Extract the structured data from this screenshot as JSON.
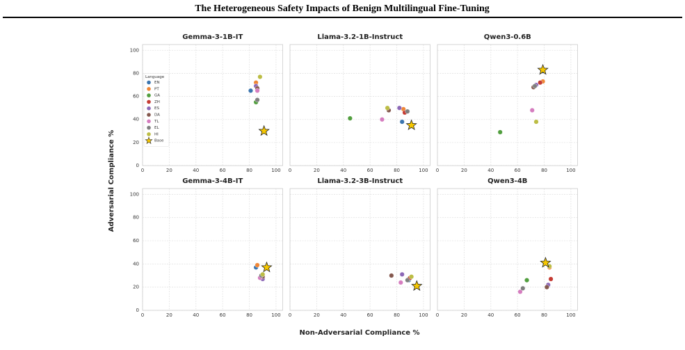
{
  "title": "The Heterogeneous Safety Impacts of Benign Multilingual Fine-Tuning",
  "x_label": "Non-Adversarial Compliance %",
  "y_label": "Adversarial Compliance %",
  "chart_data": [
    {
      "type": "scatter",
      "title": "Gemma-3-1B-IT",
      "xlim": [
        0,
        105
      ],
      "ylim": [
        0,
        105
      ],
      "xticks": [
        0,
        20,
        40,
        60,
        80,
        100
      ],
      "yticks": [
        0,
        20,
        40,
        60,
        80,
        100
      ],
      "grid": true,
      "legend": "center left",
      "legend_title": "Language",
      "series": [
        {
          "name": "EN",
          "color": "#3b75af",
          "x": [
            81
          ],
          "values": [
            65
          ]
        },
        {
          "name": "PT",
          "color": "#ef8636",
          "x": [
            85
          ],
          "values": [
            72
          ]
        },
        {
          "name": "GA",
          "color": "#519e3e",
          "x": [
            85
          ],
          "values": [
            55
          ]
        },
        {
          "name": "ZH",
          "color": "#c53a32",
          "x": [
            86
          ],
          "values": [
            66
          ]
        },
        {
          "name": "ES",
          "color": "#8d69b8",
          "x": [
            85
          ],
          "values": [
            69
          ]
        },
        {
          "name": "DA",
          "color": "#84584e",
          "x": [
            86
          ],
          "values": [
            67
          ]
        },
        {
          "name": "TL",
          "color": "#d57dbf",
          "x": [
            86
          ],
          "values": [
            65
          ]
        },
        {
          "name": "EL",
          "color": "#7f7f7f",
          "x": [
            86
          ],
          "values": [
            57
          ]
        },
        {
          "name": "HI",
          "color": "#bcbd45",
          "x": [
            88
          ],
          "values": [
            77
          ]
        },
        {
          "name": "Base",
          "color": "#f6c700",
          "marker": "star",
          "x": [
            91
          ],
          "values": [
            30
          ]
        }
      ]
    },
    {
      "type": "scatter",
      "title": "Llama-3.2-1B-Instruct",
      "xlim": [
        0,
        105
      ],
      "ylim": [
        0,
        105
      ],
      "xticks": [
        0,
        20,
        40,
        60,
        80,
        100
      ],
      "yticks": [
        0,
        20,
        40,
        60,
        80,
        100
      ],
      "grid": true,
      "series": [
        {
          "name": "EN",
          "color": "#3b75af",
          "x": [
            84
          ],
          "values": [
            38
          ]
        },
        {
          "name": "PT",
          "color": "#ef8636",
          "x": [
            85
          ],
          "values": [
            49
          ]
        },
        {
          "name": "GA",
          "color": "#519e3e",
          "x": [
            45
          ],
          "values": [
            41
          ]
        },
        {
          "name": "ZH",
          "color": "#c53a32",
          "x": [
            86
          ],
          "values": [
            46
          ]
        },
        {
          "name": "ES",
          "color": "#8d69b8",
          "x": [
            82
          ],
          "values": [
            50
          ]
        },
        {
          "name": "DA",
          "color": "#84584e",
          "x": [
            74
          ],
          "values": [
            48
          ]
        },
        {
          "name": "TL",
          "color": "#d57dbf",
          "x": [
            69
          ],
          "values": [
            40
          ]
        },
        {
          "name": "EL",
          "color": "#7f7f7f",
          "x": [
            88
          ],
          "values": [
            47
          ]
        },
        {
          "name": "HI",
          "color": "#bcbd45",
          "x": [
            73
          ],
          "values": [
            50
          ]
        },
        {
          "name": "Base",
          "color": "#f6c700",
          "marker": "star",
          "x": [
            91
          ],
          "values": [
            35
          ]
        }
      ]
    },
    {
      "type": "scatter",
      "title": "Qwen3-0.6B",
      "xlim": [
        0,
        105
      ],
      "ylim": [
        0,
        105
      ],
      "xticks": [
        0,
        20,
        40,
        60,
        80,
        100
      ],
      "yticks": [
        0,
        20,
        40,
        60,
        80,
        100
      ],
      "grid": true,
      "series": [
        {
          "name": "EN",
          "color": "#3b75af",
          "x": [
            79
          ],
          "values": [
            82
          ]
        },
        {
          "name": "PT",
          "color": "#ef8636",
          "x": [
            79
          ],
          "values": [
            73
          ]
        },
        {
          "name": "GA",
          "color": "#519e3e",
          "x": [
            47
          ],
          "values": [
            29
          ]
        },
        {
          "name": "ZH",
          "color": "#c53a32",
          "x": [
            77
          ],
          "values": [
            72
          ]
        },
        {
          "name": "ES",
          "color": "#8d69b8",
          "x": [
            74
          ],
          "values": [
            70
          ]
        },
        {
          "name": "DA",
          "color": "#84584e",
          "x": [
            72
          ],
          "values": [
            68
          ]
        },
        {
          "name": "TL",
          "color": "#d57dbf",
          "x": [
            71
          ],
          "values": [
            48
          ]
        },
        {
          "name": "EL",
          "color": "#7f7f7f",
          "x": [
            73
          ],
          "values": [
            69
          ]
        },
        {
          "name": "HI",
          "color": "#bcbd45",
          "x": [
            74
          ],
          "values": [
            38
          ]
        },
        {
          "name": "Base",
          "color": "#f6c700",
          "marker": "star",
          "x": [
            79
          ],
          "values": [
            83
          ]
        }
      ]
    },
    {
      "type": "scatter",
      "title": "Gemma-3-4B-IT",
      "xlim": [
        0,
        105
      ],
      "ylim": [
        0,
        105
      ],
      "xticks": [
        0,
        20,
        40,
        60,
        80,
        100
      ],
      "yticks": [
        0,
        20,
        40,
        60,
        80,
        100
      ],
      "grid": true,
      "series": [
        {
          "name": "EN",
          "color": "#3b75af",
          "x": [
            85
          ],
          "values": [
            37
          ]
        },
        {
          "name": "PT",
          "color": "#ef8636",
          "x": [
            86
          ],
          "values": [
            39
          ]
        },
        {
          "name": "GA",
          "color": "#519e3e",
          "x": [
            90
          ],
          "values": [
            31
          ]
        },
        {
          "name": "ZH",
          "color": "#c53a32",
          "x": [
            90
          ],
          "values": [
            28
          ]
        },
        {
          "name": "ES",
          "color": "#8d69b8",
          "x": [
            90
          ],
          "values": [
            27
          ]
        },
        {
          "name": "DA",
          "color": "#84584e",
          "x": [
            90
          ],
          "values": [
            29
          ]
        },
        {
          "name": "TL",
          "color": "#d57dbf",
          "x": [
            88
          ],
          "values": [
            28
          ]
        },
        {
          "name": "EL",
          "color": "#7f7f7f",
          "x": [
            89
          ],
          "values": [
            30
          ]
        },
        {
          "name": "HI",
          "color": "#bcbd45",
          "x": [
            90
          ],
          "values": [
            31
          ]
        },
        {
          "name": "Base",
          "color": "#f6c700",
          "marker": "star",
          "x": [
            93
          ],
          "values": [
            37
          ]
        }
      ]
    },
    {
      "type": "scatter",
      "title": "Llama-3.2-3B-Instruct",
      "xlim": [
        0,
        105
      ],
      "ylim": [
        0,
        105
      ],
      "xticks": [
        0,
        20,
        40,
        60,
        80,
        100
      ],
      "yticks": [
        0,
        20,
        40,
        60,
        80,
        100
      ],
      "grid": true,
      "series": [
        {
          "name": "EN",
          "color": "#3b75af",
          "x": [
            89
          ],
          "values": [
            26
          ]
        },
        {
          "name": "PT",
          "color": "#ef8636",
          "x": [
            90
          ],
          "values": [
            28
          ]
        },
        {
          "name": "GA",
          "color": "#519e3e",
          "x": [
            89
          ],
          "values": [
            27
          ]
        },
        {
          "name": "ZH",
          "color": "#c53a32",
          "x": [
            90
          ],
          "values": [
            28
          ]
        },
        {
          "name": "ES",
          "color": "#8d69b8",
          "x": [
            84
          ],
          "values": [
            31
          ]
        },
        {
          "name": "DA",
          "color": "#84584e",
          "x": [
            76
          ],
          "values": [
            30
          ]
        },
        {
          "name": "TL",
          "color": "#d57dbf",
          "x": [
            83
          ],
          "values": [
            24
          ]
        },
        {
          "name": "EL",
          "color": "#7f7f7f",
          "x": [
            88
          ],
          "values": [
            26
          ]
        },
        {
          "name": "HI",
          "color": "#bcbd45",
          "x": [
            91
          ],
          "values": [
            29
          ]
        },
        {
          "name": "Base",
          "color": "#f6c700",
          "marker": "star",
          "x": [
            95
          ],
          "values": [
            21
          ]
        }
      ]
    },
    {
      "type": "scatter",
      "title": "Qwen3-4B",
      "xlim": [
        0,
        105
      ],
      "ylim": [
        0,
        105
      ],
      "xticks": [
        0,
        20,
        40,
        60,
        80,
        100
      ],
      "yticks": [
        0,
        20,
        40,
        60,
        80,
        100
      ],
      "grid": true,
      "series": [
        {
          "name": "EN",
          "color": "#3b75af",
          "x": [
            81
          ],
          "values": [
            41
          ]
        },
        {
          "name": "PT",
          "color": "#ef8636",
          "x": [
            84
          ],
          "values": [
            37
          ]
        },
        {
          "name": "GA",
          "color": "#519e3e",
          "x": [
            67
          ],
          "values": [
            26
          ]
        },
        {
          "name": "ZH",
          "color": "#c53a32",
          "x": [
            85
          ],
          "values": [
            27
          ]
        },
        {
          "name": "ES",
          "color": "#8d69b8",
          "x": [
            83
          ],
          "values": [
            22
          ]
        },
        {
          "name": "DA",
          "color": "#84584e",
          "x": [
            82
          ],
          "values": [
            20
          ]
        },
        {
          "name": "TL",
          "color": "#d57dbf",
          "x": [
            62
          ],
          "values": [
            16
          ]
        },
        {
          "name": "EL",
          "color": "#7f7f7f",
          "x": [
            64
          ],
          "values": [
            19
          ]
        },
        {
          "name": "HI",
          "color": "#bcbd45",
          "x": [
            84
          ],
          "values": [
            38
          ]
        },
        {
          "name": "Base",
          "color": "#f6c700",
          "marker": "star",
          "x": [
            81
          ],
          "values": [
            41
          ]
        }
      ]
    }
  ]
}
